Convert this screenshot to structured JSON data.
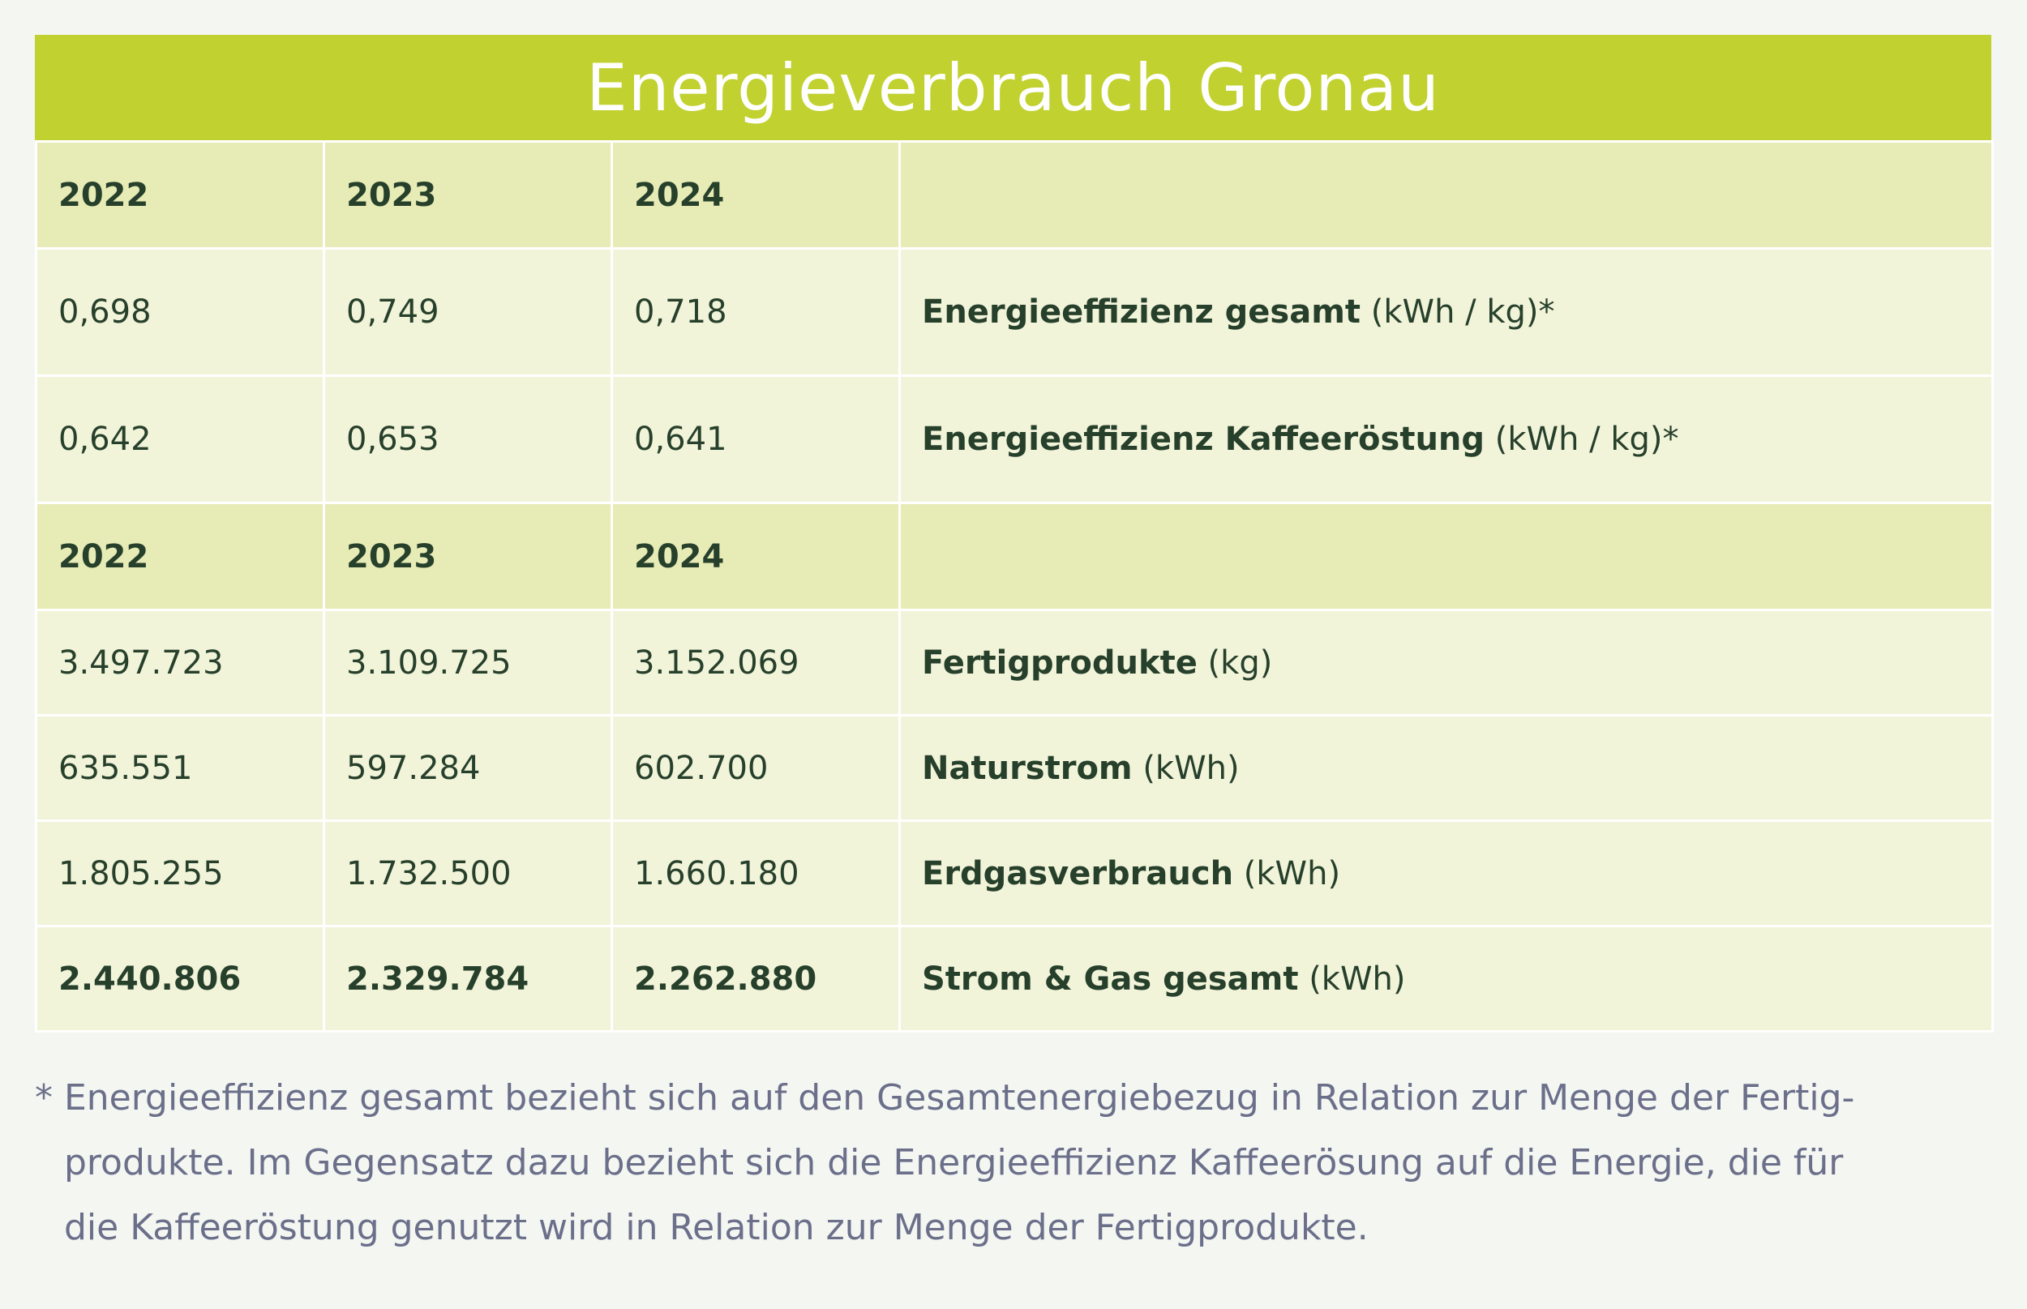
{
  "title": "Energieverbrauch Gronau",
  "years_header_1": [
    "2022",
    "2023",
    "2024"
  ],
  "efficiency_rows": [
    {
      "values": [
        "0,698",
        "0,749",
        "0,718"
      ],
      "label": "Energieeffizienz gesamt",
      "unit": " (kWh / kg)*"
    },
    {
      "values": [
        "0,642",
        "0,653",
        "0,641"
      ],
      "label": "Energieeffizienz Kaffeeröstung",
      "unit": " (kWh / kg)*"
    }
  ],
  "years_header_2": [
    "2022",
    "2023",
    "2024"
  ],
  "consumption_rows": [
    {
      "values": [
        "3.497.723",
        "3.109.725",
        "3.152.069"
      ],
      "label": "Fertigprodukte",
      "unit": " (kg)"
    },
    {
      "values": [
        "635.551",
        "597.284",
        "602.700"
      ],
      "label": "Naturstrom",
      "unit": " (kWh)"
    },
    {
      "values": [
        "1.805.255",
        "1.732.500",
        "1.660.180"
      ],
      "label": "Erdgasverbrauch",
      "unit": " (kWh)"
    }
  ],
  "total_row": {
    "values": [
      "2.440.806",
      "2.329.784",
      "2.262.880"
    ],
    "label": "Strom & Gas gesamt",
    "unit": " (kWh)"
  },
  "footnote": {
    "line1": "* Energieeffizienz gesamt bezieht sich auf den Gesamtenergiebezug in Relation zur Menge der Fertig-",
    "line2": "produkte. Im Gegensatz dazu bezieht sich die Energieeffizienz Kaffeerösung auf die Energie, die für",
    "line3": "die Kaffeeröstung genutzt wird in Relation zur Menge der Fertigprodukte."
  }
}
